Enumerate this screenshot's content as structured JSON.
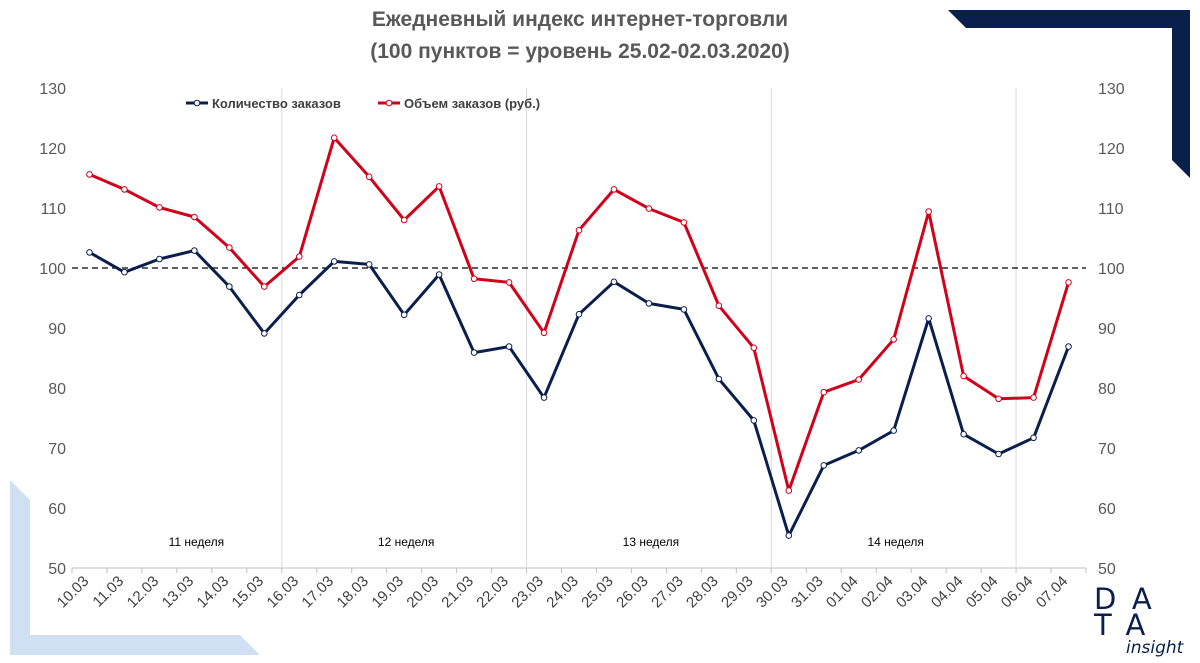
{
  "chart_data": {
    "type": "line",
    "title": "Ежедневный индекс интернет-торговли",
    "subtitle": "(100 пунктов = уровень 25.02-02.03.2020)",
    "categories": [
      "10.03",
      "11.03",
      "12.03",
      "13.03",
      "14.03",
      "15.03",
      "16.03",
      "17.03",
      "18.03",
      "19.03",
      "20.03",
      "21.03",
      "22.03",
      "23.03",
      "24.03",
      "25.03",
      "26.03",
      "27.03",
      "28.03",
      "29.03",
      "30.03",
      "31.03",
      "01.04",
      "02.04",
      "03.04",
      "04.04",
      "05.04",
      "06.04",
      "07.04"
    ],
    "series": [
      {
        "name": "Количество заказов",
        "color": "#0b1f4d",
        "values": [
          102.6,
          99.3,
          101.5,
          102.9,
          96.9,
          89.1,
          95.5,
          101.1,
          100.6,
          92.2,
          98.9,
          85.9,
          86.9,
          78.4,
          92.3,
          97.7,
          94.1,
          93.1,
          81.5,
          74.6,
          55.4,
          67.1,
          69.6,
          72.9,
          91.6,
          72.3,
          69.0,
          71.7,
          86.9
        ]
      },
      {
        "name": "Объем заказов (руб.)",
        "color": "#d0021b",
        "values": [
          115.6,
          113.1,
          110.1,
          108.5,
          103.4,
          96.9,
          101.9,
          121.7,
          115.2,
          108.0,
          113.6,
          98.2,
          97.6,
          89.2,
          106.3,
          113.1,
          109.9,
          107.6,
          93.7,
          86.7,
          62.9,
          79.3,
          81.4,
          88.1,
          109.4,
          82.0,
          78.2,
          78.4,
          97.6
        ]
      }
    ],
    "ylim": [
      50,
      130
    ],
    "yticks": [
      50,
      60,
      70,
      80,
      90,
      100,
      110,
      120,
      130
    ],
    "reference_line": 100,
    "week_separators_after": [
      "15.03",
      "22.03",
      "29.03",
      "05.04"
    ],
    "week_labels": [
      {
        "text": "11 неделя",
        "at": "13.03"
      },
      {
        "text": "12 неделя",
        "at": "19.03"
      },
      {
        "text": "13 неделя",
        "at": "26.03"
      },
      {
        "text": "14 неделя",
        "at": "02.04"
      }
    ],
    "legend_position": "top-left",
    "grid": false
  },
  "logo": {
    "row1": "DA",
    "row2": "TA",
    "sub": "insight"
  },
  "colors": {
    "brand_navy": "#0b1f4d",
    "brand_light_blue": "#cfe0f3"
  }
}
